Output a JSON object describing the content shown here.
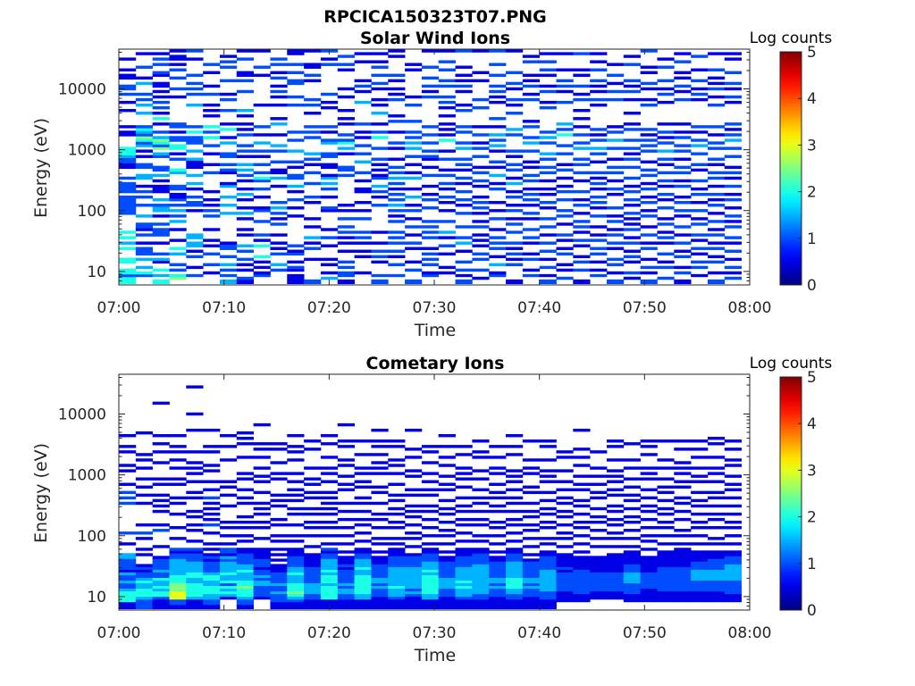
{
  "figure": {
    "title": "RPCICA150323T07.PNG",
    "background": "#ffffff",
    "text_color": "#262626"
  },
  "chart_data": [
    {
      "type": "heatmap",
      "title": "Solar Wind Ions",
      "xlabel": "Time",
      "ylabel": "Energy (eV)",
      "x_tick_labels": [
        "07:00",
        "07:10",
        "07:20",
        "07:30",
        "07:40",
        "07:50",
        "08:00"
      ],
      "x_range_minutes": [
        0,
        60
      ],
      "y_scale": "log",
      "y_range_eV": [
        6,
        45000
      ],
      "y_tick_labels": [
        "10",
        "100",
        "1000",
        "10000"
      ],
      "y_tick_values": [
        10,
        100,
        1000,
        10000
      ],
      "colorbar": {
        "label": "Log counts",
        "range": [
          0,
          5
        ],
        "tick_labels": [
          "0",
          "1",
          "2",
          "3",
          "4",
          "5"
        ],
        "colormap": "jet"
      },
      "sweep_start_minutes": [
        0.0,
        1.6,
        3.2,
        4.8,
        6.4,
        8.0,
        9.6,
        11.2,
        12.8,
        14.4,
        16.0,
        17.6,
        19.2,
        20.8,
        22.4,
        24.0,
        25.6,
        27.2,
        28.8,
        30.4,
        32.0,
        33.6,
        35.2,
        36.8,
        38.4,
        40.0,
        41.6,
        43.2,
        44.8,
        46.4,
        48.0,
        49.6,
        51.2,
        52.8,
        54.4,
        56.0,
        57.6
      ],
      "sweep_width_minutes": 1.6,
      "energy_channel_centers_eV": [
        7.0,
        7.8,
        8.6,
        9.5,
        10.6,
        11.7,
        13.0,
        14.4,
        15.9,
        17.6,
        19.5,
        21.6,
        24.0,
        26.5,
        29.4,
        32.6,
        36.1,
        40.0,
        44.3,
        49.1,
        54.4,
        60.2,
        66.7,
        73.9,
        81.9,
        90.7,
        100.5,
        111.3,
        123.3,
        136.6,
        151.4,
        167.7,
        185.8,
        205.8,
        228.0,
        252.6,
        279.8,
        309.9,
        343.4,
        380.4,
        421.4,
        466.8,
        517.2,
        572.9,
        634.7,
        703.1,
        778.9,
        862.9,
        956.0,
        1059.0,
        1173.2,
        1299.8,
        1439.9,
        1595.2,
        1767.2,
        1957.8,
        2168.9,
        2402.8,
        2661.9,
        2949.0,
        3267.0,
        3619.3,
        4009.6,
        4442.0,
        4921.0,
        5451.6,
        6039.5,
        6690.8,
        7412.3,
        8211.6,
        9097.1,
        10078.1,
        11164.9,
        12368.8,
        13702.6,
        15180.2,
        16817.2,
        18630.7,
        20639.7,
        22865.4,
        25331.1,
        28062.7,
        31088.9,
        34441.4,
        38155.3,
        42269.9
      ],
      "counts_encoding": "one string per sweep, one character per energy channel (lowest energy first); '.' = no counts, '0'-'9' = log counts x 2 (value / 2)",
      "log_counts_x2": [
        "44244..44...4.3.4.4......2222222.2222.2...11223444....11.1.....1..1..2.22..11.1...1.....",
        "..24.3..3.222.1..2.122..3...2..2.2.1..33..22..1.1.32452342....3..3.2.2...3.1...2....1....",
        "4.3.4..13.2...1..222.2..1.332.3..111.1.3.22...23.52453.2..1.4.1.2.2.1.1.11..12..2.2.1.2.",
        ".54.2.2...3.4..1...1..3.2.3.2.211.22....34...2.1.44.22.1.22.........1..2...2..2.1.11.1...",
        "..2..1...2.1.33.33........1.22.2..1.3..3..1113..3..222.4.2.......3...2.2.2..2.....1..2...",
        "...1..2...2..1.1...1....2.2.1.1..1......2..1...1..2..4.2.4...1.1.1...2..1....1..2.....2..",
        "3.2.2.3..2..221..........3..3..3...31...12.2..22...3.1..4.1....2...2.1....2....2.2.1...2.",
        "12..1.1.2..2.3...1.1...1.3.1..1.3.1..1.2.3.3..1.2.2...2.1.1..1.3......2...2.11....2..1...",
        "..21.1.1.4...4.1.2....2...21...1..2..24.2..2..1.2..3..1..2.......1..........1..2.....1.1.",
        "....2.3...2.1.1..1...2.1.2.3.2.....1..3.11..2...2.3...1...3.1....1..1.2.1..2.1..2.2...1..",
        "111.12.1..21.2..........1..1..2..1.3..22..1.2...3...2..2.........2..2....22..2..2...11.1.",
        "2.......1...2.1.3...1..1.....1.2....2...2..1.2.3.....2.2.2....1..2.2......1.2..11....1..",
        ".3.1..1.1....1..2..1......12...1..2.3.31..11..22...32..1.2......1.1..2..........2.1..2...",
        "1.22.2.2...1..1.1.2.2..2..1.1..........2.22....1.3.42.2...1.1..1....1..1......1.2..2...1.",
        "...1.....1.1..1.2.2....2..1..1...11..1..2...3..2..2..1.1..2.......3...1.2.1......1..1....",
        "2.2....1.2.2..1...1.........2..1.2.3..21.1.1.2...2...4.2..1...3..1.1...1.2..2..2.1..1..1.",
        "..2...2..1.2..2.2.2...2.1.2.3.2.2.1.2.3.2.2..1...1.2...1...2.1.....2.1.1..1.2......1.1..",
        "2...2..1....1.2..1..2..1..2.1..3..1...3.1..1..2..3.3.2.2...2.....2..1.........1.1.....1.",
        "..21..2.2.2.1...2.2.2.2....2..2.1..1...2..1..12.2..2..2..2..........2.1.2..2...2.....1..",
        "...1.1....1..2..1.3...2...1..1.2..1.2..2.1...2..1...4.1.1.1..1..1.2.2...2.2...2..2...1..",
        "2.1.2..2...1..3.2...2....2..1.2..2..1.2..1.2.2...3.2...2.2.....2.1....1.2.1.1..1.....2..",
        ".1..2...2.2..1.1.1..2.1..1.2.2.1...1.2..2.1...2..2.1..2..1......2..2......1..1.......1..",
        "..21..3..1..2.2.2..1...2..1..1....2.1..3..1.2...1.3.2.3..1..2.....1.1.2.2...2...2....2..",
        "1.....2.1.2.1.2...2..2.1..2.1..2.1..3.1..2.2..1.2.....2.3.....2..1.2...1.2...2.......1.",
        "..2.1...2.1...1.2..2...1.2..1.2.2.1..2.2..1.1...2..3.2...2.1.......2.1..2.1.1....2.1...",
        "2.1..2..1..2..2..1..2..2...1.2..1.1..1..2.2..2.3...2.3.2........2.1...2.1...1.2..2..1..",
        ".2..1.1...2.1..1.2...1..2.2...2..2.1..1..2.1...2..2...4.2.3.......2...1.2.2...1.....1..",
        "1...2..2.1...1.2..1.2.2..1..2.1..2...1..2..2.2...3.2..2..1..1..1...2.1..2...1.1.....2..",
        "..2.1..1..2.2..2.1..1...2..1.2.2..1.2.1.2...1..2.3..2.1.2........1.2..1.1.2...2..1..1..",
        "2..1..2.2...1.2..2.1..2.1..2....1.2..1..2.2..1...2..3..2.1.........2..2..1..2...1.....",
        ".1.2...1.2.1..2.1..2.1.1.2..1.2..2.1..2...2..2.1.2..2...2.1...1....1..2.1.2.....2..1...",
        "2..1.2..1...2.1..2..1...2.1..2.1..2.1..2.2..1...2.2.2.1.2........2.1...1.2...1.1.....2.",
        ".2...2.1..2...1.2.1..2.1...2..1.2..1.2..2..1.2..3..2.1.2..1.......1..2.1..2....2..1....",
        "1..2.1...2.1..2..1..2...1.2..2.1...2.1..2.2..1..2.2..2.1..1........2..1.2..1.1...2..1..",
        "..1..2.2..1.2..1.2...2.1..2..1..2.1..2...1.2...2..3.2..1.2.........1.2.1..2...1....2...",
        "2..1...2.1..2.1..2.1..2..1..2.1.2..1..2.2..1.2...2.2..1..2.......2..1..2.1.1..2.....1..",
        ".2.1.2..1..2..1.2...2.1.2..1..2.1..2..1.2.1...2..2..3.2.1.2.......1.2..1.2...2....1.1.."
      ]
    },
    {
      "type": "heatmap",
      "title": "Cometary Ions",
      "xlabel": "Time",
      "ylabel": "Energy (eV)",
      "x_tick_labels": [
        "07:00",
        "07:10",
        "07:20",
        "07:30",
        "07:40",
        "07:50",
        "08:00"
      ],
      "x_range_minutes": [
        0,
        60
      ],
      "y_scale": "log",
      "y_range_eV": [
        6,
        45000
      ],
      "y_tick_labels": [
        "10",
        "100",
        "1000",
        "10000"
      ],
      "y_tick_values": [
        10,
        100,
        1000,
        10000
      ],
      "colorbar": {
        "label": "Log counts",
        "range": [
          0,
          5
        ],
        "tick_labels": [
          "0",
          "1",
          "2",
          "3",
          "4",
          "5"
        ],
        "colormap": "jet"
      },
      "sweep_start_minutes": [
        0.0,
        1.6,
        3.2,
        4.8,
        6.4,
        8.0,
        9.6,
        11.2,
        12.8,
        14.4,
        16.0,
        17.6,
        19.2,
        20.8,
        22.4,
        24.0,
        25.6,
        27.2,
        28.8,
        30.4,
        32.0,
        33.6,
        35.2,
        36.8,
        38.4,
        40.0,
        41.6,
        43.2,
        44.8,
        46.4,
        48.0,
        49.6,
        51.2,
        52.8,
        54.4,
        56.0,
        57.6
      ],
      "sweep_width_minutes": 1.6,
      "energy_channel_centers_eV": [
        7.0,
        7.8,
        8.6,
        9.5,
        10.6,
        11.7,
        13.0,
        14.4,
        15.9,
        17.6,
        19.5,
        21.6,
        24.0,
        26.5,
        29.4,
        32.6,
        36.1,
        40.0,
        44.3,
        49.1,
        54.4,
        60.2,
        66.7,
        73.9,
        81.9,
        90.7,
        100.5,
        111.3,
        123.3,
        136.6,
        151.4,
        167.7,
        185.8,
        205.8,
        228.0,
        252.6,
        279.8,
        309.9,
        343.4,
        380.4,
        421.4,
        466.8,
        517.2,
        572.9,
        634.7,
        703.1,
        778.9,
        862.9,
        956.0,
        1059.0,
        1173.2,
        1299.8,
        1439.9,
        1595.2,
        1767.2,
        1957.8,
        2168.9,
        2402.8,
        2661.9,
        2949.0,
        3267.0,
        3619.3,
        4009.6,
        4442.0,
        4921.0,
        5451.6,
        6039.5,
        6690.8,
        7412.3,
        8211.6,
        9097.1,
        10078.1,
        11164.9,
        12368.8,
        13702.6,
        15180.2,
        16817.2,
        18630.7,
        20639.7,
        22865.4,
        25331.1,
        28062.7,
        31088.9,
        34441.4,
        38155.3,
        42269.9
      ],
      "counts_encoding": "one string per sweep, one character per energy channel (lowest energy first); '.' = no counts, '0'-'9' = log counts x 2 (value / 2)",
      "log_counts_x2": [
        "11444432232231222233...1...2..........2.2.2..1....1.1....1.1...1.........................",
        "2223444334322121...1.1...1.2..1.......1..1..1..1...1..1.1.......1........................",
        "1112443433422322221...1.....2.1....1.1.1.1...1.1.....1...1..1..1...........1.............",
        "1226665554443333332212...1...1....1...1.1....1.1...1..1..1.1...1.........................",
        "1113444443344333322212..1...1.1..1.1....1.1...1..1.1.1...1.......1.....1.........1.......",
        "12233444334432222121.1.1...1..2.1.1.1.1.2..1..1...1.1....1.1.....1.......................",
        "...1343424334333323122.1..1..1.1.....1...1..1.1.......1....1...1.........................",
        "1223444544333433222211..1.1..1.1.1....1.1..1...1.1.....1....1.1.1........................",
        "...1222233232212221111...1...1.1..1.1.1...1...1.1..1...1..1.1......1.....................",
        "1122232232222111.1.1.1..1.1...1.1....1.1.1.....1.1...1....1.1............................",
        "1123454443334332222111..1.1...1...1.1..1.1.1..1..1....1..1.1...1.........................",
        "11122333322222211111..1...1..1.1..1.1...1.1..1.1...1......1..1...........................",
        "1114444434443433332212.1..1..1.1..1.1.1.1.1...1..1.1...1....1..1.........................",
        "1112233232222212111.1..1..1..1..1..1..1....1.1..1...1.1....1.1.....1.....................",
        "1113344444443343332211..1..1..1.1..1..1.1...1.1..1.1....1....1...........................",
        "1111222323322222111.1..1.1...1..1.1...1...1.1....1.1.1..1..1.1...1.......................",
        "1112333433333332222111.1.1...1.1..1.1..1.1...1...1..1.1....1.1...........................",
        "11112323333333322221..1..1.1..1..1.1.1...1.1....1.1....1..1......1.......................",
        "1113344444443433322211.1..1..1..1..1.1...1.1..1..1...1...1.1.............................",
        "1111222333322222211.1..1..1.1..1..1.1..1...1.1..1...1..1...1...1.........................",
        "1112333434333332222111..1..1..1.1..1.1..1...1..1.1.1....1..1.............................",
        "1112233333333333222211..1.1...1.1..1..1.1..1...1..1....1.1...1...........................",
        "1111222323322222211.1..1..1..1.1...1.1..1.1..1...1.1...1...1.............................",
        "1112233444433333322211..1..1..1.1..1..1.1..1..1.1.1.....1..1...1.........................",
        "111122232332222221.1..1..1..1.1..1.1..1...1.1....1.1..1......1...........................",
        "111222333333332222211..1.1...1.1..1.1..1..1...1.1.1...1....1.1...........................",
        "..111122222221211111..1..1.1..1..1.1..1.1..1..1...1....1.1...............................",
        "..11122222222211111.1..1..1..1.1..1..1.1...1.1..1...1..1..1......1.......................",
        "...1112222222111111...1..1..1..1.1..1...1.1..1..1..1.....1...............................",
        "...11122222221111111..1..1.1..1.1..1.1...1.1..1.1.1...1....1.1...........................",
        "..1112222333322211111.1..1..1..1.1..1..1.1..1..1...1..1.....1............................",
        "..11111222222111111..1..1.1..1..1..1.1..1..1...1.1.1....1..1.1...........................",
        "..1111222222222111111..1..1..1.1..1.1..1..1.1..1...1..1......1...........................",
        "..11112222222221111111.1..1.1...1..1..1.1...1.1..1.1.1....1..1...........................",
        "..1111222233332221111..1..1..1.1..1..1.1..1...1.1..1...1..1..1...........................",
        "..1111222233332222111..1.1...1..1.1..1..1.1...1..1.1...1....1.1..........................",
        "..1112222233333322211..1..1..1.1..1..1..1..1.1..1...1.1...1..1..........................."
      ]
    }
  ]
}
